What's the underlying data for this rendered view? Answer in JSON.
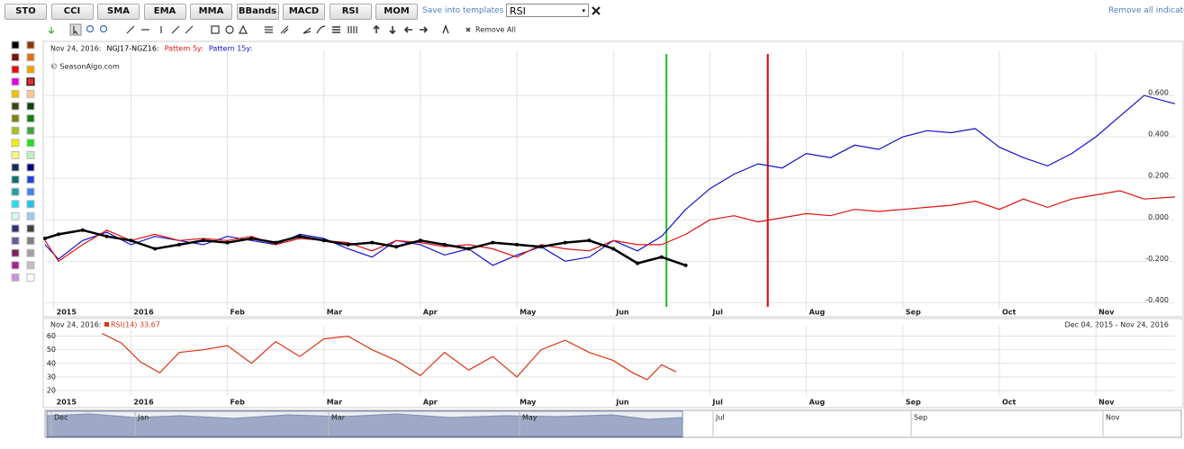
{
  "toolbar": {
    "buttons": [
      "STO",
      "CCI",
      "SMA",
      "EMA",
      "MMA",
      "BBands",
      "MACD",
      "RSI",
      "MOM"
    ],
    "save_link": "Save into templates",
    "template_select": "RSI",
    "remove_all_indicators": "Remove all indicators"
  },
  "drawing_toolbar": {
    "remove_all": "Remove All"
  },
  "palette": [
    "#000000",
    "#8b3a0a",
    "#7a1010",
    "#e07010",
    "#e01010",
    "#f0a000",
    "#e000e0",
    "#e03030",
    "#f0c000",
    "#f8c890",
    "#404010",
    "#104010",
    "#808010",
    "#108010",
    "#a0c020",
    "#40a040",
    "#f0f000",
    "#20e020",
    "#f8f880",
    "#c0f0c0",
    "#103050",
    "#000080",
    "#107070",
    "#2040e0",
    "#20a0a0",
    "#4080f0",
    "#20e0f0",
    "#20c0f0",
    "#d0f8f8",
    "#a0c8f0",
    "#303070",
    "#404040",
    "#6060a0",
    "#808080",
    "#802060",
    "#a0a0a0",
    "#a02090",
    "#c0c0c0",
    "#d090e0",
    "#ffffff"
  ],
  "chart_data": [
    {
      "type": "line",
      "date": "Nov 24, 2016:",
      "watermark": "© SeasonAlgo.com",
      "xlim": [
        -0.89,
        10.82
      ],
      "ylim": [
        -0.42,
        0.8
      ],
      "grid": true,
      "xticks": [
        {
          "value": -0.8,
          "label": "2015"
        },
        {
          "value": 0,
          "label": "2016"
        },
        {
          "value": 1,
          "label": "Feb"
        },
        {
          "value": 2,
          "label": "Mar"
        },
        {
          "value": 3,
          "label": "Apr"
        },
        {
          "value": 4,
          "label": "May"
        },
        {
          "value": 5,
          "label": "Jun"
        },
        {
          "value": 6,
          "label": "Jul"
        },
        {
          "value": 7,
          "label": "Aug"
        },
        {
          "value": 8,
          "label": "Sep"
        },
        {
          "value": 9,
          "label": "Oct"
        },
        {
          "value": 10,
          "label": "Nov"
        }
      ],
      "yticks": [
        {
          "value": 0.6,
          "label": "0.600"
        },
        {
          "value": 0.4,
          "label": "0.400"
        },
        {
          "value": 0.2,
          "label": "0.200"
        },
        {
          "value": 0,
          "label": "0.000"
        },
        {
          "value": -0.2,
          "label": "-0.200"
        },
        {
          "value": -0.4,
          "label": "-0.400"
        }
      ],
      "markers": [
        {
          "x": 5.55,
          "color": "#22bb22"
        },
        {
          "x": 6.6,
          "color": "#dd0000"
        }
      ],
      "series": [
        {
          "name": "NGJ17-NGZ16:",
          "color": "#000000",
          "x": [
            -0.89,
            -0.75,
            -0.5,
            -0.25,
            0,
            0.25,
            0.5,
            0.75,
            1,
            1.25,
            1.5,
            1.75,
            2,
            2.25,
            2.5,
            2.75,
            3,
            3.25,
            3.5,
            3.75,
            4,
            4.25,
            4.5,
            4.75,
            5,
            5.25,
            5.5,
            5.75
          ],
          "values": [
            -0.09,
            -0.07,
            -0.05,
            -0.08,
            -0.1,
            -0.14,
            -0.12,
            -0.1,
            -0.11,
            -0.09,
            -0.11,
            -0.08,
            -0.1,
            -0.12,
            -0.11,
            -0.13,
            -0.1,
            -0.12,
            -0.14,
            -0.11,
            -0.12,
            -0.13,
            -0.11,
            -0.1,
            -0.14,
            -0.21,
            -0.18,
            -0.22
          ]
        },
        {
          "name": "Pattern 5y:",
          "color": "#dd1111",
          "x": [
            -0.89,
            -0.75,
            -0.5,
            -0.25,
            0,
            0.25,
            0.5,
            0.75,
            1,
            1.25,
            1.5,
            1.75,
            2,
            2.25,
            2.5,
            2.75,
            3,
            3.25,
            3.5,
            3.75,
            4,
            4.25,
            4.5,
            4.75,
            5,
            5.25,
            5.5,
            5.75,
            6,
            6.25,
            6.5,
            6.75,
            7,
            7.25,
            7.5,
            7.75,
            8,
            8.25,
            8.5,
            8.75,
            9,
            9.25,
            9.5,
            9.75,
            10,
            10.25,
            10.5,
            10.82
          ],
          "values": [
            -0.1,
            -0.2,
            -0.12,
            -0.05,
            -0.1,
            -0.07,
            -0.1,
            -0.09,
            -0.1,
            -0.08,
            -0.12,
            -0.09,
            -0.1,
            -0.11,
            -0.15,
            -0.1,
            -0.11,
            -0.13,
            -0.12,
            -0.14,
            -0.18,
            -0.12,
            -0.14,
            -0.15,
            -0.1,
            -0.12,
            -0.12,
            -0.07,
            0.0,
            0.02,
            -0.01,
            0.01,
            0.03,
            0.02,
            0.05,
            0.04,
            0.05,
            0.06,
            0.07,
            0.09,
            0.05,
            0.1,
            0.06,
            0.1,
            0.12,
            0.14,
            0.1,
            0.11
          ]
        },
        {
          "name": "Pattern 15y:",
          "color": "#1111cc",
          "x": [
            -0.89,
            -0.75,
            -0.5,
            -0.25,
            0,
            0.25,
            0.5,
            0.75,
            1,
            1.25,
            1.5,
            1.75,
            2,
            2.25,
            2.5,
            2.75,
            3,
            3.25,
            3.5,
            3.75,
            4,
            4.25,
            4.5,
            4.75,
            5,
            5.25,
            5.5,
            5.75,
            6,
            6.25,
            6.5,
            6.75,
            7,
            7.25,
            7.5,
            7.75,
            8,
            8.25,
            8.5,
            8.75,
            9,
            9.25,
            9.5,
            9.75,
            10,
            10.25,
            10.5,
            10.82
          ],
          "values": [
            -0.12,
            -0.19,
            -0.1,
            -0.06,
            -0.12,
            -0.08,
            -0.1,
            -0.12,
            -0.08,
            -0.1,
            -0.12,
            -0.07,
            -0.09,
            -0.14,
            -0.18,
            -0.1,
            -0.12,
            -0.17,
            -0.14,
            -0.22,
            -0.17,
            -0.13,
            -0.2,
            -0.18,
            -0.1,
            -0.15,
            -0.08,
            0.05,
            0.15,
            0.22,
            0.27,
            0.25,
            0.32,
            0.3,
            0.36,
            0.34,
            0.4,
            0.43,
            0.42,
            0.44,
            0.35,
            0.3,
            0.26,
            0.32,
            0.4,
            0.5,
            0.6,
            0.56
          ]
        }
      ]
    },
    {
      "type": "line",
      "date": "Nov 24, 2016:",
      "indicator": "RSI(14) 33.67",
      "range": "Dec 04, 2015 - Nov 24, 2016",
      "xlim": [
        -0.89,
        10.82
      ],
      "ylim": [
        18,
        65
      ],
      "grid": true,
      "xticks": [
        {
          "value": -0.8,
          "label": "2015"
        },
        {
          "value": 0,
          "label": "2016"
        },
        {
          "value": 1,
          "label": "Feb"
        },
        {
          "value": 2,
          "label": "Mar"
        },
        {
          "value": 3,
          "label": "Apr"
        },
        {
          "value": 4,
          "label": "May"
        },
        {
          "value": 5,
          "label": "Jun"
        },
        {
          "value": 6,
          "label": "Jul"
        },
        {
          "value": 7,
          "label": "Aug"
        },
        {
          "value": 8,
          "label": "Sep"
        },
        {
          "value": 9,
          "label": "Oct"
        },
        {
          "value": 10,
          "label": "Nov"
        }
      ],
      "yticks": [
        60,
        50,
        40,
        30,
        20
      ],
      "series": [
        {
          "name": "RSI(14)",
          "color": "#dd3311",
          "x": [
            -0.3,
            -0.1,
            0.1,
            0.3,
            0.5,
            0.75,
            1,
            1.25,
            1.5,
            1.75,
            2,
            2.25,
            2.5,
            2.75,
            3,
            3.25,
            3.5,
            3.75,
            4,
            4.25,
            4.5,
            4.75,
            5,
            5.2,
            5.35,
            5.5,
            5.65
          ],
          "values": [
            62,
            55,
            41,
            33,
            48,
            50,
            53,
            40,
            56,
            45,
            58,
            60,
            50,
            42,
            31,
            48,
            35,
            45,
            30,
            50,
            57,
            48,
            42,
            33,
            28,
            39,
            33.67
          ]
        }
      ]
    }
  ],
  "navigator": {
    "labels": [
      "Dec",
      "Jan",
      "Mar",
      "May",
      "Jul",
      "Sep",
      "Nov"
    ]
  }
}
